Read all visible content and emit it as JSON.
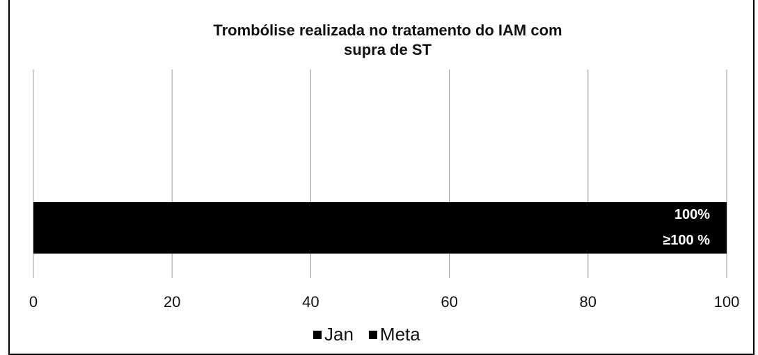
{
  "chart_data": {
    "type": "hbar",
    "title": "Trombólise realizada no tratamento do IAM com supra de ST",
    "categories": [
      null
    ],
    "series": [
      {
        "name": "Jan",
        "color": "#000000",
        "values": [
          100
        ],
        "value_labels": [
          "100%"
        ]
      },
      {
        "name": "Meta",
        "color": "#000000",
        "values": [
          100
        ],
        "value_labels": [
          "≥100 %"
        ]
      }
    ],
    "xlim": [
      0,
      100
    ],
    "xticks": [
      0,
      20,
      40,
      60,
      80,
      100
    ],
    "grid": true,
    "legend": "bottom"
  }
}
